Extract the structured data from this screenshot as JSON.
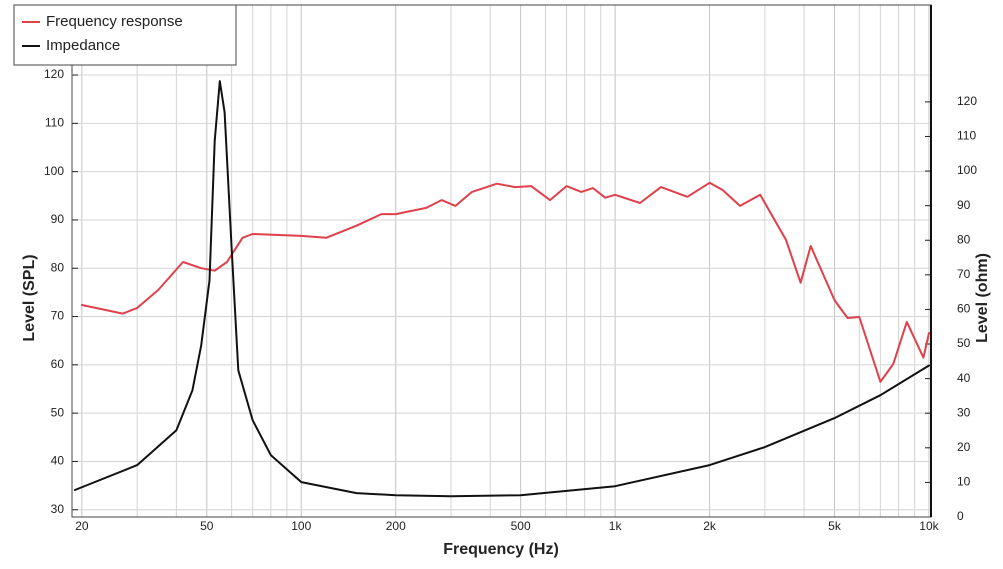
{
  "chart_data": {
    "type": "line",
    "xlabel": "Frequency (Hz)",
    "ylabel": "Level (SPL)",
    "y2label": "Level (ohm)",
    "xscale": "log",
    "xlim": [
      18.6,
      10150
    ],
    "xticks": [
      20,
      50,
      100,
      200,
      500,
      {
        "value": 1000,
        "label": "1k"
      },
      {
        "value": 2000,
        "label": "2k"
      },
      {
        "value": 5000,
        "label": "5k"
      },
      {
        "value": 10000,
        "label": "10k"
      }
    ],
    "xminor": [
      30,
      40,
      60,
      70,
      80,
      90,
      300,
      400,
      600,
      700,
      800,
      900,
      3000,
      4000,
      6000,
      7000,
      8000,
      9000
    ],
    "ylim": [
      28.5,
      134.5
    ],
    "yticks": [
      30,
      40,
      50,
      60,
      70,
      80,
      90,
      100,
      110,
      120
    ],
    "y2lim": [
      0,
      148
    ],
    "y2ticks": [
      0,
      10,
      20,
      30,
      40,
      50,
      60,
      70,
      80,
      90,
      100,
      110,
      120
    ],
    "grid": true,
    "legend": "top-left",
    "series": [
      {
        "name": "Frequency response",
        "color": "#e0404a",
        "x": [
          20,
          27,
          30,
          35,
          42,
          48,
          53,
          58,
          65,
          70,
          100,
          120,
          150,
          180,
          200,
          250,
          280,
          310,
          350,
          420,
          480,
          540,
          620,
          700,
          780,
          850,
          930,
          1000,
          1200,
          1400,
          1700,
          2000,
          2200,
          2500,
          2900,
          3500,
          3900,
          4200,
          5000,
          5500,
          6000,
          7000,
          7700,
          8500,
          9600,
          10000
        ],
        "values": [
          72.4,
          70.6,
          71.8,
          75.5,
          81.3,
          80,
          79.5,
          81.3,
          86.3,
          87.1,
          86.7,
          86.3,
          88.8,
          91.2,
          91.2,
          92.5,
          94.1,
          92.9,
          95.8,
          97.5,
          96.8,
          97,
          94.1,
          97,
          95.8,
          96.6,
          94.6,
          95.2,
          93.5,
          96.8,
          94.8,
          97.7,
          96.2,
          92.9,
          95.2,
          85.9,
          77,
          84.6,
          73.4,
          69.7,
          69.9,
          56.5,
          60.2,
          68.9,
          61.5,
          66.6
        ]
      },
      {
        "name": "Impedance",
        "color": "#111111",
        "axis": "y2",
        "x": [
          19,
          30,
          40,
          45,
          48,
          51,
          53,
          55,
          57,
          60,
          63,
          70,
          80,
          100,
          150,
          200,
          300,
          500,
          1000,
          2000,
          3000,
          5000,
          7000,
          10000
        ],
        "values": [
          7.8,
          15,
          25.1,
          36.6,
          49.6,
          68.4,
          108.7,
          126,
          117,
          77.9,
          42.4,
          28,
          17.9,
          10.1,
          6.9,
          6.3,
          6,
          6.3,
          8.9,
          15,
          20.2,
          28.6,
          35.2,
          43.8
        ]
      }
    ]
  }
}
